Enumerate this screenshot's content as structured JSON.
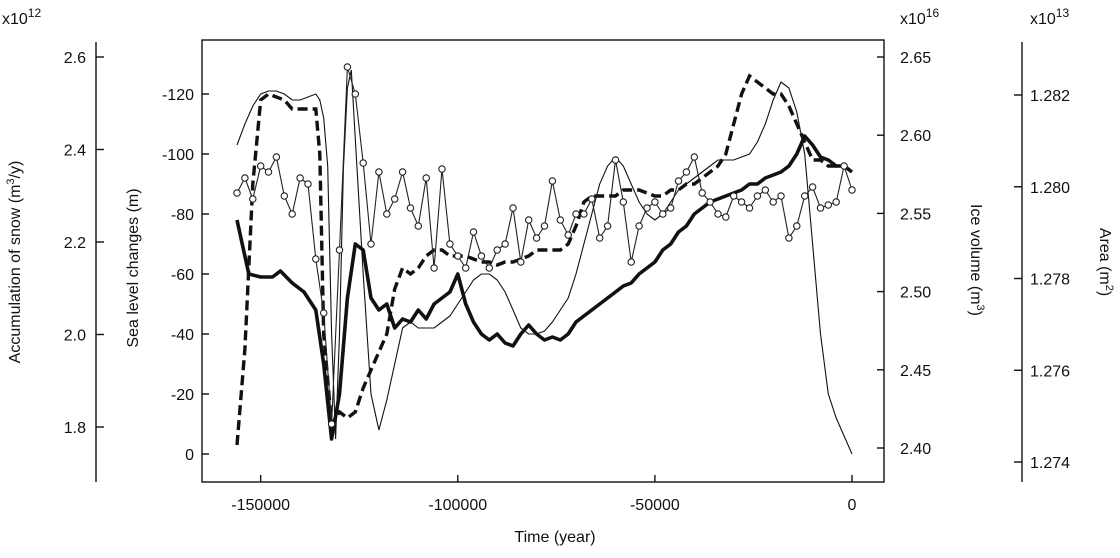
{
  "chart_data": {
    "type": "line",
    "xlabel": "Time (year)",
    "xlim": [
      -160000,
      2000
    ],
    "x_ticks": [
      -150000,
      -100000,
      -50000,
      0
    ],
    "axes": {
      "accum": {
        "label_prefix": "Accumulation of snow (m",
        "label_sup": "3",
        "label_suffix": "/y)",
        "exponent_base": "x10",
        "exponent_power": "12",
        "ticks": [
          "2.6",
          "2.4",
          "2.2",
          "2.0",
          "1.8"
        ],
        "tick_values": [
          2.6,
          2.4,
          2.2,
          2.0,
          1.8
        ]
      },
      "sea": {
        "label": "Sea level changes (m)",
        "ticks": [
          "-120",
          "-100",
          "-80",
          "-60",
          "-40",
          "-20",
          "0"
        ],
        "tick_values": [
          -120,
          -100,
          -80,
          -60,
          -40,
          -20,
          0
        ],
        "ylim": [
          -132,
          10
        ]
      },
      "ice": {
        "label_prefix": "Ice volume (m",
        "label_sup": "3",
        "label_suffix": ")",
        "exponent_base": "x10",
        "exponent_power": "16",
        "ticks": [
          "2.65",
          "2.60",
          "2.55",
          "2.50",
          "2.45",
          "2.40"
        ],
        "tick_values": [
          2.65,
          2.6,
          2.55,
          2.5,
          2.45,
          2.4
        ]
      },
      "area": {
        "label_prefix": "Area (m",
        "label_sup": "2",
        "label_suffix": ")",
        "exponent_base": "x10",
        "exponent_power": "13",
        "ticks": [
          "1.282",
          "1.280",
          "1.278",
          "1.276",
          "1.274"
        ],
        "tick_values": [
          1.282,
          1.28,
          1.278,
          1.276,
          1.274
        ]
      }
    },
    "series": [
      {
        "style": "thick-solid",
        "axis": "sea",
        "x": [
          -156000,
          -153000,
          -150000,
          -147000,
          -145000,
          -142000,
          -139000,
          -136000,
          -134000,
          -132000,
          -130000,
          -128000,
          -126000,
          -124000,
          -122000,
          -120000,
          -118000,
          -116000,
          -114000,
          -112000,
          -110000,
          -108000,
          -106000,
          -104000,
          -102000,
          -100000,
          -98000,
          -96000,
          -94000,
          -92000,
          -90000,
          -88000,
          -86000,
          -84000,
          -82000,
          -80000,
          -78000,
          -76000,
          -74000,
          -72000,
          -70000,
          -68000,
          -66000,
          -64000,
          -62000,
          -60000,
          -58000,
          -56000,
          -54000,
          -52000,
          -50000,
          -48000,
          -46000,
          -44000,
          -42000,
          -40000,
          -38000,
          -36000,
          -34000,
          -32000,
          -30000,
          -28000,
          -26000,
          -24000,
          -22000,
          -20000,
          -18000,
          -16000,
          -14000,
          -12000,
          -10000,
          -8000,
          -6000,
          -4000,
          -2000,
          0
        ],
        "y": [
          -78,
          -60,
          -59,
          -59,
          -61,
          -57,
          -54,
          -48,
          -30,
          -5,
          -20,
          -52,
          -70,
          -68,
          -52,
          -48,
          -50,
          -42,
          -45,
          -44,
          -48,
          -45,
          -50,
          -52,
          -54,
          -60,
          -50,
          -44,
          -40,
          -38,
          -40,
          -37,
          -36,
          -40,
          -43,
          -40,
          -38,
          -39,
          -38,
          -40,
          -44,
          -46,
          -48,
          -50,
          -52,
          -54,
          -56,
          -57,
          -60,
          -62,
          -64,
          -68,
          -70,
          -74,
          -76,
          -80,
          -82,
          -84,
          -85,
          -86,
          -87,
          -88,
          -90,
          -90,
          -92,
          -93,
          -94,
          -96,
          -100,
          -106,
          -103,
          -99,
          -98,
          -96,
          -96,
          -94
        ]
      },
      {
        "style": "dashed",
        "axis": "sea",
        "x": [
          -156000,
          -154000,
          -152000,
          -150000,
          -148000,
          -146000,
          -144000,
          -142000,
          -140000,
          -138000,
          -136000,
          -135000,
          -134000,
          -132000,
          -130000,
          -128000,
          -126000,
          -124000,
          -122000,
          -120000,
          -118000,
          -116000,
          -114000,
          -112000,
          -110000,
          -108000,
          -106000,
          -104000,
          -102000,
          -100000,
          -98000,
          -96000,
          -94000,
          -92000,
          -90000,
          -88000,
          -86000,
          -84000,
          -82000,
          -80000,
          -78000,
          -76000,
          -74000,
          -72000,
          -70000,
          -68000,
          -66000,
          -64000,
          -62000,
          -60000,
          -58000,
          -56000,
          -54000,
          -52000,
          -50000,
          -48000,
          -46000,
          -44000,
          -42000,
          -40000,
          -38000,
          -36000,
          -34000,
          -32000,
          -30000,
          -28000,
          -26000,
          -24000,
          -22000,
          -20000,
          -18000,
          -16000,
          -14000,
          -12000,
          -10000,
          -8000,
          -6000,
          -4000,
          -2000,
          0
        ],
        "y": [
          -3,
          -35,
          -90,
          -118,
          -120,
          -119,
          -118,
          -115,
          -115,
          -115,
          -115,
          -100,
          -40,
          -10,
          -14,
          -12,
          -14,
          -22,
          -28,
          -34,
          -40,
          -55,
          -62,
          -60,
          -62,
          -66,
          -68,
          -68,
          -66,
          -66,
          -66,
          -65,
          -64,
          -64,
          -63,
          -64,
          -64,
          -65,
          -66,
          -68,
          -68,
          -68,
          -68,
          -70,
          -76,
          -84,
          -86,
          -86,
          -86,
          -86,
          -88,
          -88,
          -88,
          -87,
          -86,
          -86,
          -88,
          -88,
          -90,
          -90,
          -92,
          -94,
          -96,
          -100,
          -110,
          -120,
          -126,
          -124,
          -122,
          -120,
          -120,
          -116,
          -110,
          -104,
          -98,
          -98,
          -96,
          -96,
          -96,
          -94
        ]
      },
      {
        "style": "thin-solid",
        "axis": "sea",
        "x": [
          -156000,
          -154000,
          -152000,
          -150000,
          -148000,
          -146000,
          -144000,
          -142000,
          -140000,
          -138000,
          -136000,
          -135000,
          -134000,
          -133000,
          -132000,
          -131000,
          -130000,
          -129000,
          -128000,
          -127000,
          -126000,
          -124000,
          -122000,
          -120000,
          -118000,
          -116000,
          -114000,
          -112000,
          -110000,
          -108000,
          -106000,
          -104000,
          -102000,
          -100000,
          -98000,
          -96000,
          -94000,
          -92000,
          -90000,
          -88000,
          -86000,
          -84000,
          -82000,
          -80000,
          -78000,
          -76000,
          -74000,
          -72000,
          -70000,
          -68000,
          -66000,
          -64000,
          -62000,
          -60000,
          -58000,
          -56000,
          -54000,
          -52000,
          -50000,
          -48000,
          -46000,
          -44000,
          -42000,
          -40000,
          -38000,
          -36000,
          -34000,
          -32000,
          -30000,
          -28000,
          -26000,
          -24000,
          -22000,
          -20000,
          -18000,
          -16000,
          -14000,
          -12000,
          -10000,
          -8000,
          -6000,
          -4000,
          -2000,
          0
        ],
        "y": [
          -103,
          -110,
          -116,
          -120,
          -121,
          -121,
          -120,
          -118,
          -118,
          -119,
          -120,
          -118,
          -112,
          -96,
          -40,
          -5,
          -40,
          -95,
          -122,
          -128,
          -105,
          -60,
          -20,
          -8,
          -18,
          -30,
          -42,
          -44,
          -42,
          -42,
          -42,
          -44,
          -46,
          -50,
          -54,
          -58,
          -60,
          -60,
          -58,
          -54,
          -48,
          -42,
          -40,
          -40,
          -41,
          -44,
          -48,
          -52,
          -60,
          -70,
          -80,
          -90,
          -96,
          -99,
          -96,
          -90,
          -84,
          -80,
          -78,
          -80,
          -84,
          -88,
          -90,
          -92,
          -94,
          -96,
          -98,
          -98,
          -98,
          -99,
          -100,
          -104,
          -110,
          -118,
          -124,
          -122,
          -114,
          -100,
          -70,
          -40,
          -20,
          -12,
          -6,
          0
        ]
      },
      {
        "style": "circles",
        "axis": "sea",
        "x": [
          -156000,
          -154000,
          -152000,
          -150000,
          -148000,
          -146000,
          -144000,
          -142000,
          -140000,
          -138000,
          -136000,
          -134000,
          -132000,
          -130000,
          -128000,
          -126000,
          -124000,
          -122000,
          -120000,
          -118000,
          -116000,
          -114000,
          -112000,
          -110000,
          -108000,
          -106000,
          -104000,
          -102000,
          -100000,
          -98000,
          -96000,
          -94000,
          -92000,
          -90000,
          -88000,
          -86000,
          -84000,
          -82000,
          -80000,
          -78000,
          -76000,
          -74000,
          -72000,
          -70000,
          -68000,
          -66000,
          -64000,
          -62000,
          -60000,
          -58000,
          -56000,
          -54000,
          -52000,
          -50000,
          -48000,
          -46000,
          -44000,
          -42000,
          -40000,
          -38000,
          -36000,
          -34000,
          -32000,
          -30000,
          -28000,
          -26000,
          -24000,
          -22000,
          -20000,
          -18000,
          -16000,
          -14000,
          -12000,
          -10000,
          -8000,
          -6000,
          -4000,
          -2000,
          0
        ],
        "y": [
          -87,
          -92,
          -85,
          -96,
          -94,
          -99,
          -86,
          -80,
          -92,
          -90,
          -65,
          -47,
          -10,
          -68,
          -129,
          -120,
          -97,
          -70,
          -94,
          -80,
          -85,
          -94,
          -82,
          -76,
          -92,
          -62,
          -95,
          -70,
          -66,
          -62,
          -74,
          -66,
          -62,
          -68,
          -70,
          -82,
          -64,
          -78,
          -72,
          -76,
          -91,
          -78,
          -73,
          -80,
          -80,
          -85,
          -72,
          -76,
          -98,
          -84,
          -64,
          -76,
          -82,
          -84,
          -80,
          -82,
          -91,
          -94,
          -99,
          -87,
          -84,
          -80,
          -79,
          -86,
          -84,
          -82,
          -86,
          -88,
          -84,
          -86,
          -72,
          -76,
          -86,
          -89,
          -82,
          -83,
          -84,
          -96,
          -88
        ]
      }
    ]
  }
}
